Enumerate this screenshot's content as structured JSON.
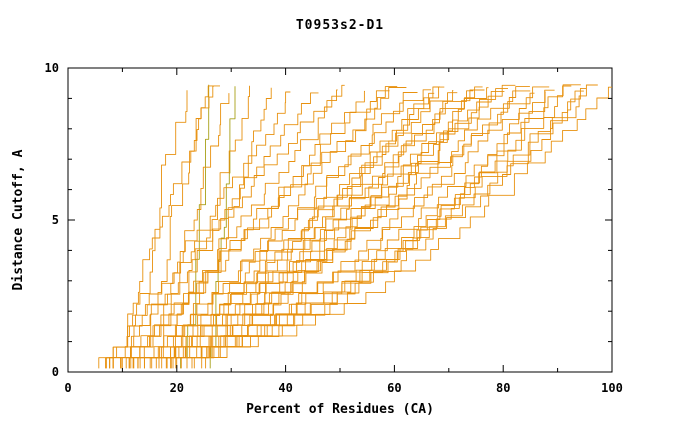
{
  "title": "T0953s2-D1",
  "axes": {
    "xlabel": "Percent of Residues (CA)",
    "ylabel": "Distance Cutoff, A"
  },
  "chart_data": {
    "type": "line",
    "title": "T0953s2-D1",
    "xlabel": "Percent of Residues (CA)",
    "ylabel": "Distance Cutoff, A",
    "xlim": [
      0,
      100
    ],
    "ylim": [
      0,
      10
    ],
    "xticks": [
      0,
      20,
      40,
      60,
      80,
      100
    ],
    "yticks": [
      0,
      5,
      10
    ],
    "x_minor_step": 10,
    "y_minor_step": 1,
    "grid": false,
    "legend": "none",
    "colors": {
      "line": "#e8910e",
      "line_alt": "#a8a019",
      "frame": "#000000",
      "background": "#ffffff"
    },
    "description": "Ensemble of ~40 monotone step curves (one per predicted model): percent of CA residues fitting under each distance cutoff for target T0953s2-D1. Curves rise from ~(5-30%, 0 A) to ~(22-100%, 9.5 A).",
    "curve_y_start": 0.12,
    "curve_y_end": 9.45,
    "curves": [
      {
        "x0": 22,
        "x1": 26,
        "p": 1.2,
        "col": 1
      },
      {
        "x0": 26,
        "x1": 30,
        "p": 1.0,
        "col": 1
      },
      {
        "x0": 12,
        "x1": 22,
        "p": 1.3,
        "col": 0
      },
      {
        "x0": 14,
        "x1": 26,
        "p": 1.2,
        "col": 0
      },
      {
        "x0": 16,
        "x1": 30,
        "p": 1.1,
        "col": 0
      },
      {
        "x0": 18,
        "x1": 34,
        "p": 1.0,
        "col": 0
      },
      {
        "x0": 20,
        "x1": 38,
        "p": 1.0,
        "col": 0
      },
      {
        "x0": 10,
        "x1": 28,
        "p": 1.4,
        "col": 0
      },
      {
        "x0": 6,
        "x1": 42,
        "p": 0.9,
        "col": 0
      },
      {
        "x0": 7,
        "x1": 46,
        "p": 0.95,
        "col": 0
      },
      {
        "x0": 8,
        "x1": 50,
        "p": 1.0,
        "col": 0
      },
      {
        "x0": 9,
        "x1": 52,
        "p": 0.85,
        "col": 0
      },
      {
        "x0": 10,
        "x1": 55,
        "p": 0.9,
        "col": 0
      },
      {
        "x0": 11,
        "x1": 58,
        "p": 1.0,
        "col": 0
      },
      {
        "x0": 12,
        "x1": 60,
        "p": 0.8,
        "col": 0
      },
      {
        "x0": 13,
        "x1": 62,
        "p": 1.1,
        "col": 0
      },
      {
        "x0": 14,
        "x1": 64,
        "p": 0.9,
        "col": 0
      },
      {
        "x0": 15,
        "x1": 66,
        "p": 1.0,
        "col": 0
      },
      {
        "x0": 16,
        "x1": 68,
        "p": 0.85,
        "col": 0
      },
      {
        "x0": 17,
        "x1": 70,
        "p": 0.95,
        "col": 0
      },
      {
        "x0": 18,
        "x1": 72,
        "p": 1.05,
        "col": 0
      },
      {
        "x0": 19,
        "x1": 74,
        "p": 0.9,
        "col": 0
      },
      {
        "x0": 20,
        "x1": 76,
        "p": 1.0,
        "col": 0
      },
      {
        "x0": 21,
        "x1": 78,
        "p": 0.9,
        "col": 0
      },
      {
        "x0": 22,
        "x1": 80,
        "p": 1.0,
        "col": 0
      },
      {
        "x0": 23,
        "x1": 82,
        "p": 0.95,
        "col": 0
      },
      {
        "x0": 24,
        "x1": 84,
        "p": 0.9,
        "col": 0
      },
      {
        "x0": 25,
        "x1": 86,
        "p": 1.0,
        "col": 0
      },
      {
        "x0": 12,
        "x1": 68,
        "p": 0.7,
        "col": 0
      },
      {
        "x0": 14,
        "x1": 72,
        "p": 0.75,
        "col": 0
      },
      {
        "x0": 16,
        "x1": 76,
        "p": 0.7,
        "col": 0
      },
      {
        "x0": 18,
        "x1": 80,
        "p": 0.75,
        "col": 0
      },
      {
        "x0": 20,
        "x1": 84,
        "p": 0.7,
        "col": 0
      },
      {
        "x0": 22,
        "x1": 88,
        "p": 0.75,
        "col": 0
      },
      {
        "x0": 6,
        "x1": 90,
        "p": 0.55,
        "col": 0
      },
      {
        "x0": 7,
        "x1": 92,
        "p": 0.5,
        "col": 0
      },
      {
        "x0": 8,
        "x1": 94,
        "p": 0.55,
        "col": 0
      },
      {
        "x0": 9,
        "x1": 96,
        "p": 0.5,
        "col": 0
      },
      {
        "x0": 10,
        "x1": 98,
        "p": 0.55,
        "col": 0
      },
      {
        "x0": 11,
        "x1": 100,
        "p": 0.5,
        "col": 0
      },
      {
        "x0": 8,
        "x1": 88,
        "p": 0.45,
        "col": 0
      },
      {
        "x0": 13,
        "x1": 96,
        "p": 0.6,
        "col": 0
      }
    ]
  }
}
